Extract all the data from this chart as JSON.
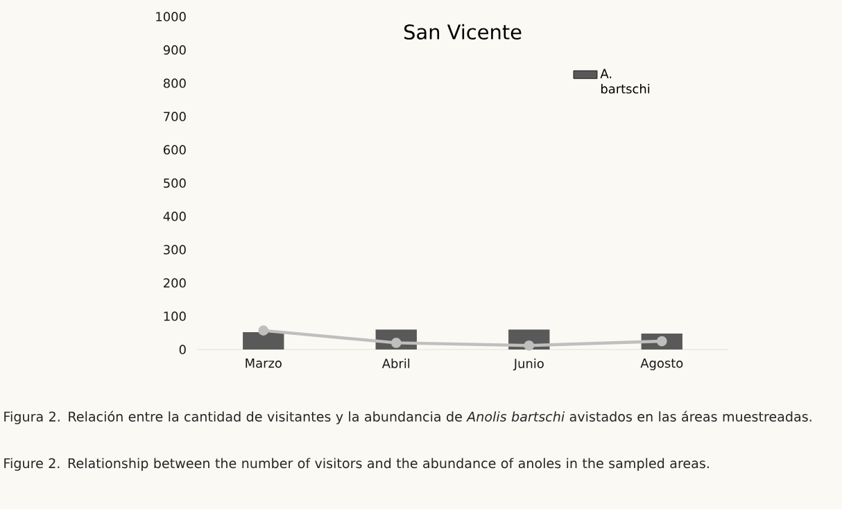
{
  "chart_data": {
    "type": "bar",
    "title": "San Vicente",
    "categories": [
      "Marzo",
      "Abril",
      "Junio",
      "Agosto"
    ],
    "series": [
      {
        "name": "A. bartschi",
        "color": "#595959",
        "values": [
          52,
          60,
          60,
          48
        ]
      },
      {
        "type": "line",
        "color": "#bfbfbf",
        "marker": "circle",
        "values": [
          57,
          20,
          12,
          25
        ]
      }
    ],
    "ylim": [
      0,
      1000
    ],
    "yticks": [
      0,
      100,
      200,
      300,
      400,
      500,
      600,
      700,
      800,
      900,
      1000
    ],
    "legend": "top right",
    "annotations": [
      "Figura 2. Relación entre la cantidad de visitantes y la abundancia de *Anolis bartschi* avistados en las áreas muestreadas.",
      "Figure 2. Relationship between the number of visitors and the abundance of anoles in the sampled areas."
    ]
  }
}
